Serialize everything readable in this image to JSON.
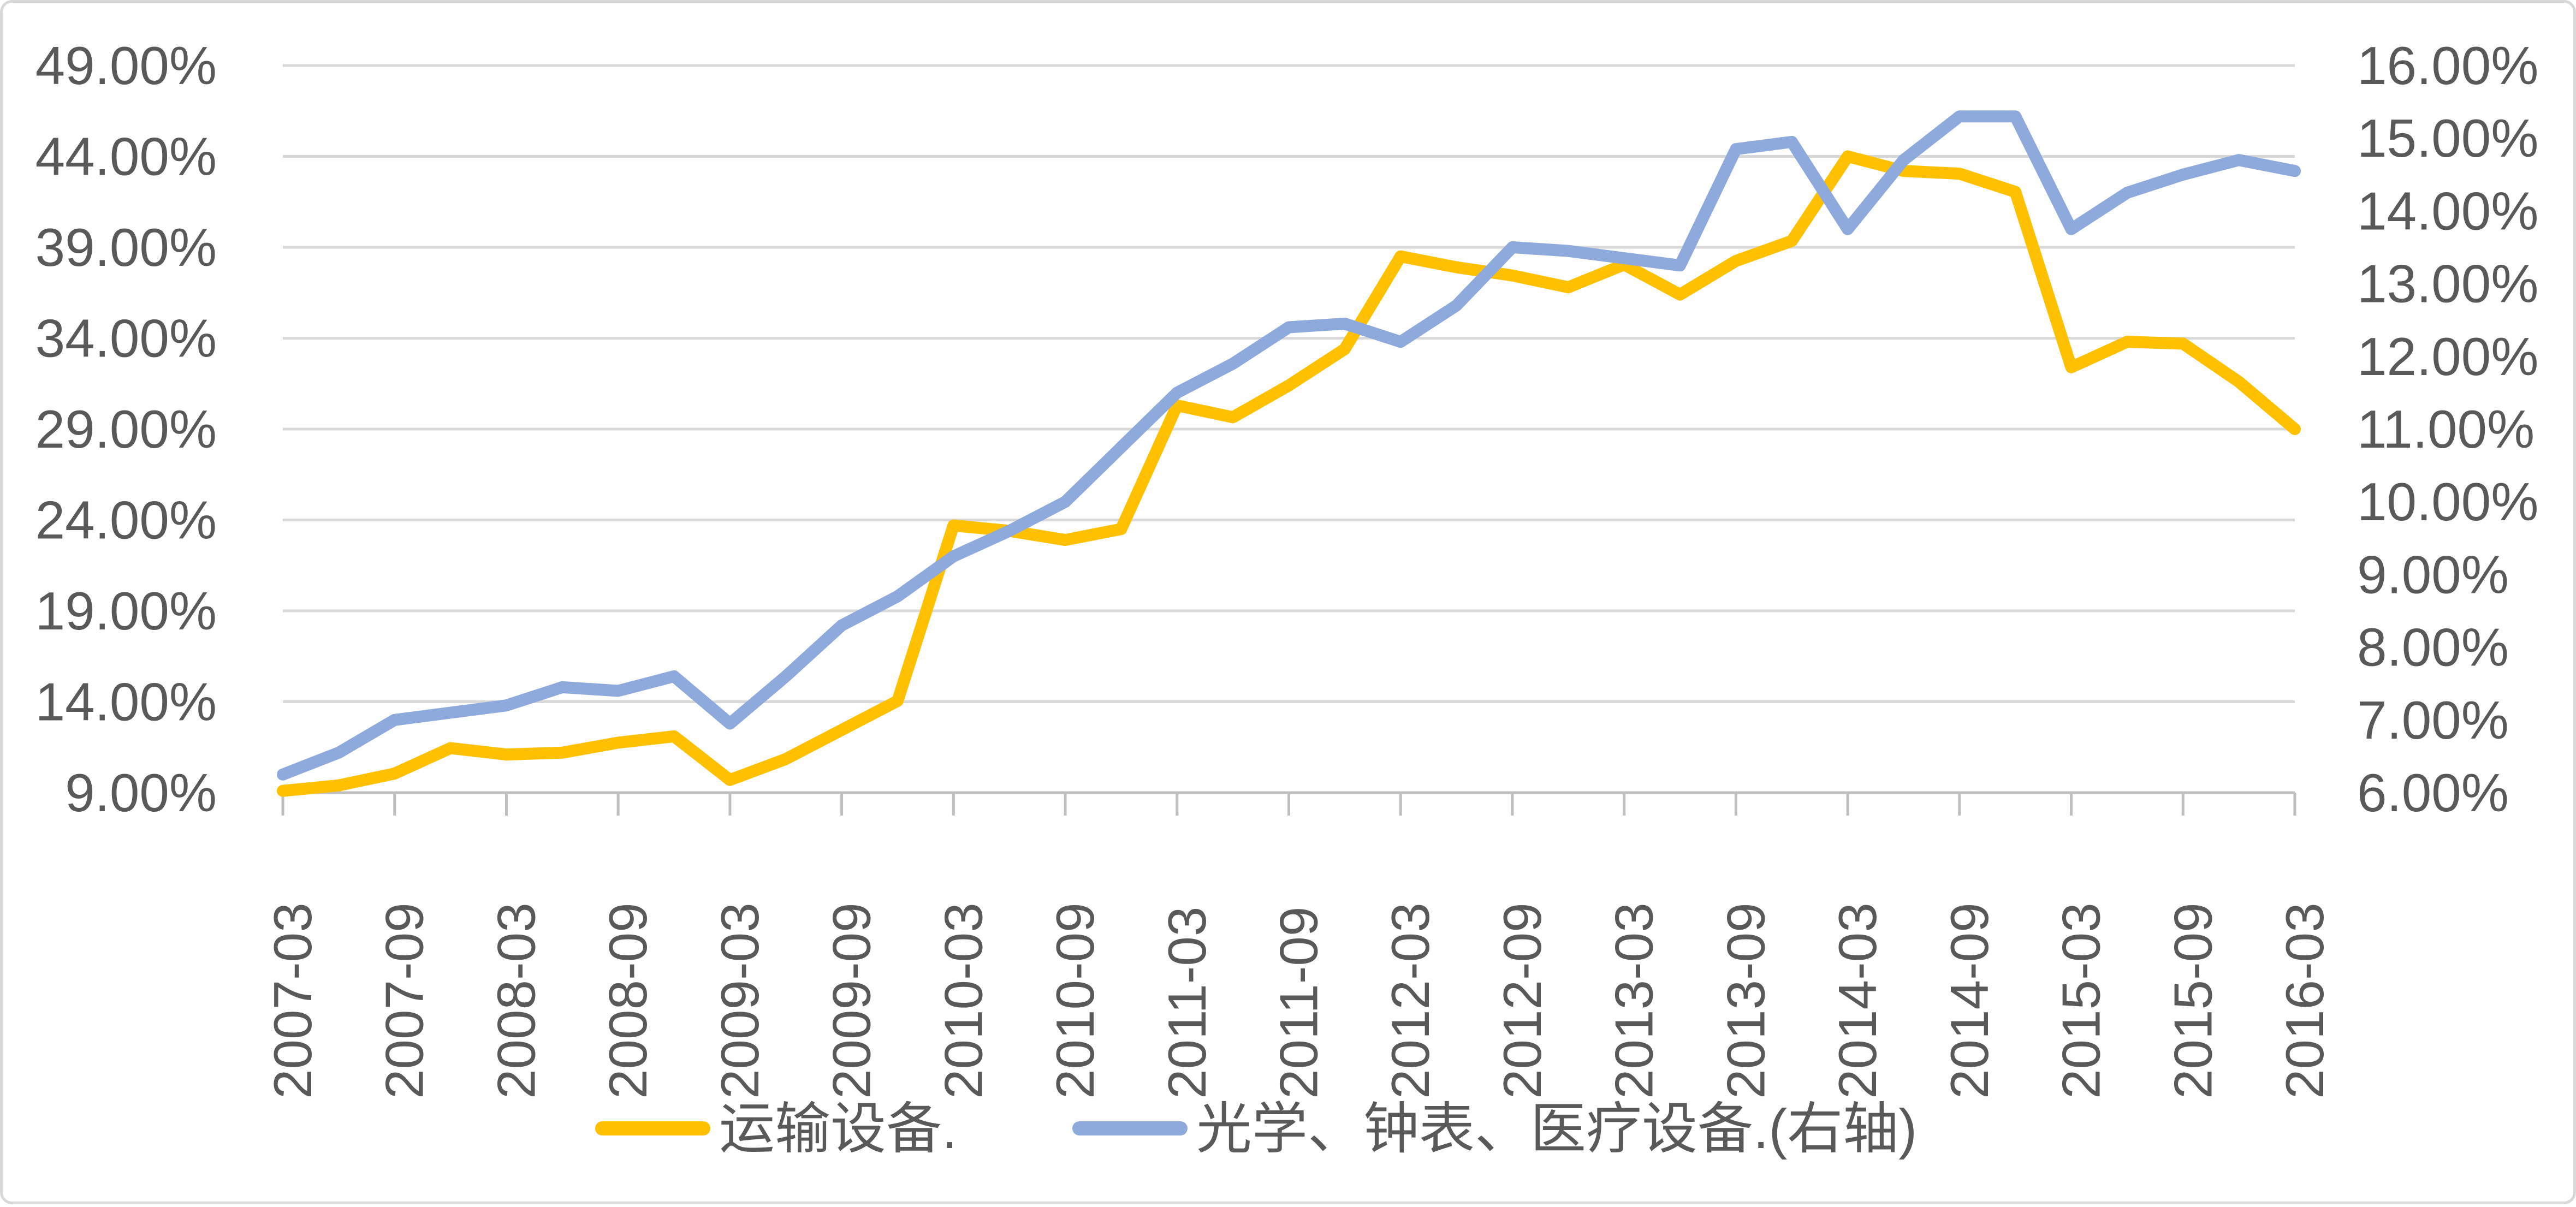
{
  "chart_data": {
    "type": "line",
    "title": "",
    "xlabel": "",
    "ylabel": "",
    "grid": true,
    "legend_position": "bottom",
    "x": [
      "2007-03",
      "2007-06",
      "2007-09",
      "2007-12",
      "2008-03",
      "2008-06",
      "2008-09",
      "2008-12",
      "2009-03",
      "2009-06",
      "2009-09",
      "2009-12",
      "2010-03",
      "2010-06",
      "2010-09",
      "2010-12",
      "2011-03",
      "2011-06",
      "2011-09",
      "2011-12",
      "2012-03",
      "2012-06",
      "2012-09",
      "2012-12",
      "2013-03",
      "2013-06",
      "2013-09",
      "2013-12",
      "2014-03",
      "2014-06",
      "2014-09",
      "2014-12",
      "2015-03",
      "2015-06",
      "2015-09",
      "2015-12",
      "2016-03"
    ],
    "x_tick_labels": [
      "2007-03",
      "2007-09",
      "2008-03",
      "2008-09",
      "2009-03",
      "2009-09",
      "2010-03",
      "2010-09",
      "2011-03",
      "2011-09",
      "2012-03",
      "2012-09",
      "2013-03",
      "2013-09",
      "2014-03",
      "2014-09",
      "2015-03",
      "2015-09",
      "2016-03"
    ],
    "series": [
      {
        "name": "运输设备.",
        "axis": "left",
        "color": "#FFC000",
        "values": [
          9.1,
          9.4,
          10.05,
          11.45,
          11.1,
          11.2,
          11.75,
          12.1,
          9.7,
          10.85,
          12.45,
          14.05,
          23.7,
          23.4,
          22.9,
          23.5,
          30.3,
          29.65,
          31.4,
          33.4,
          38.5,
          37.9,
          37.45,
          36.8,
          38.05,
          36.4,
          38.25,
          39.35,
          44.0,
          43.2,
          43.05,
          42.05,
          32.4,
          33.8,
          33.7,
          31.6,
          29.0
        ]
      },
      {
        "name": "光学、钟表、医疗设备.(右轴)",
        "axis": "right",
        "color": "#8EA9DB",
        "values": [
          6.25,
          6.55,
          7.0,
          7.1,
          7.2,
          7.45,
          7.4,
          7.6,
          6.95,
          7.6,
          8.3,
          8.7,
          9.25,
          9.6,
          10.0,
          10.75,
          11.5,
          11.9,
          12.4,
          12.45,
          12.2,
          12.7,
          13.5,
          13.45,
          13.35,
          13.25,
          14.85,
          14.95,
          13.75,
          14.7,
          15.3,
          15.3,
          13.75,
          14.25,
          14.5,
          14.7,
          14.55
        ]
      }
    ],
    "left_axis": {
      "min": 9,
      "max": 49,
      "step": 5,
      "tick_labels": [
        "49.00%",
        "44.00%",
        "39.00%",
        "34.00%",
        "29.00%",
        "24.00%",
        "19.00%",
        "14.00%",
        "9.00%"
      ]
    },
    "right_axis": {
      "min": 6,
      "max": 16,
      "step": 1,
      "tick_labels": [
        "16.00%",
        "15.00%",
        "14.00%",
        "13.00%",
        "12.00%",
        "11.00%",
        "10.00%",
        "9.00%",
        "8.00%",
        "7.00%",
        "6.00%"
      ]
    }
  },
  "legend": {
    "items": [
      {
        "label": "运输设备.",
        "color": "#FFC000"
      },
      {
        "label": "光学、钟表、医疗设备.(右轴)",
        "color": "#8EA9DB"
      }
    ]
  },
  "colors": {
    "gridline": "#D9D9D9",
    "axis_line": "#BFBFBF",
    "label_text": "#595959",
    "background": "#FFFFFF",
    "border": "#D8D8D8"
  }
}
